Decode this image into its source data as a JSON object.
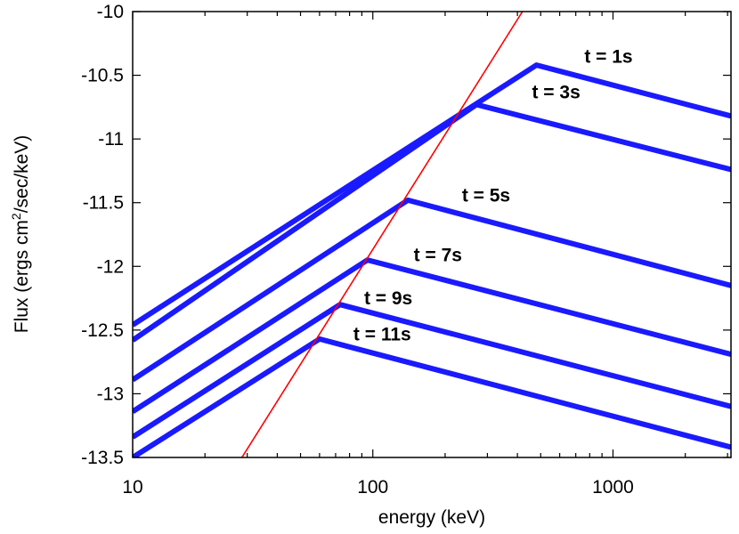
{
  "chart_data": {
    "type": "line",
    "title": "",
    "xlabel": "energy (keV)",
    "ylabel": "Flux (ergs cm^2/sec/keV)",
    "ylabel_parts": {
      "pre": "Flux (ergs cm",
      "sup": "2",
      "post": "/sec/keV)"
    },
    "x_scale": "log",
    "xlim": [
      10,
      3100
    ],
    "ylim": [
      -13.5,
      -10
    ],
    "x_ticks": [
      {
        "value": 10,
        "label": "10"
      },
      {
        "value": 100,
        "label": "100"
      },
      {
        "value": 1000,
        "label": "1000"
      }
    ],
    "y_ticks": [
      {
        "value": -10,
        "label": "-10"
      },
      {
        "value": -10.5,
        "label": "-10.5"
      },
      {
        "value": -11,
        "label": "-11"
      },
      {
        "value": -11.5,
        "label": "-11.5"
      },
      {
        "value": -12,
        "label": "-12"
      },
      {
        "value": -12.5,
        "label": "-12.5"
      },
      {
        "value": -13,
        "label": "-13"
      },
      {
        "value": -13.5,
        "label": "-13.5"
      }
    ],
    "grid": false,
    "legend": "none",
    "series": [
      {
        "name": "t = 1s",
        "color": "#1a1aff",
        "points": [
          [
            10,
            -12.46
          ],
          [
            480,
            -10.42
          ],
          [
            3100,
            -10.82
          ]
        ],
        "label_at": [
          760,
          -10.4
        ]
      },
      {
        "name": "t = 3s",
        "color": "#1a1aff",
        "points": [
          [
            10,
            -12.58
          ],
          [
            270,
            -10.73
          ],
          [
            3100,
            -11.24
          ]
        ],
        "label_at": [
          460,
          -10.68
        ]
      },
      {
        "name": "t = 5s",
        "color": "#1a1aff",
        "points": [
          [
            10,
            -12.89
          ],
          [
            140,
            -11.48
          ],
          [
            3100,
            -12.15
          ]
        ],
        "label_at": [
          235,
          -11.49
        ]
      },
      {
        "name": "t = 7s",
        "color": "#1a1aff",
        "points": [
          [
            10,
            -13.14
          ],
          [
            95,
            -11.95
          ],
          [
            3100,
            -12.69
          ]
        ],
        "label_at": [
          148,
          -11.96
        ]
      },
      {
        "name": "t = 9s",
        "color": "#1a1aff",
        "points": [
          [
            10,
            -13.34
          ],
          [
            73,
            -12.3
          ],
          [
            3100,
            -13.1
          ]
        ],
        "label_at": [
          92,
          -12.3
        ]
      },
      {
        "name": "t = 11s",
        "color": "#1a1aff",
        "points": [
          [
            10,
            -13.5
          ],
          [
            60,
            -12.57
          ],
          [
            3100,
            -13.42
          ]
        ],
        "label_at": [
          83,
          -12.58
        ]
      },
      {
        "name": "peak-energy-line",
        "color": "#ff0000",
        "points": [
          [
            28.5,
            -13.5
          ],
          [
            420,
            -10
          ]
        ]
      }
    ]
  }
}
